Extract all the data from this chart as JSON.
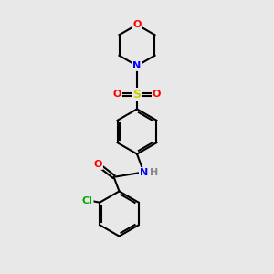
{
  "bg_color": "#e8e8e8",
  "bond_color": "#000000",
  "atom_colors": {
    "O": "#ff0000",
    "N": "#0000ff",
    "S": "#cccc00",
    "Cl": "#00aa00",
    "H": "#888888"
  },
  "line_width": 1.5,
  "figsize": [
    3.0,
    3.0
  ],
  "dpi": 100,
  "xlim": [
    0,
    10
  ],
  "ylim": [
    0,
    10
  ]
}
